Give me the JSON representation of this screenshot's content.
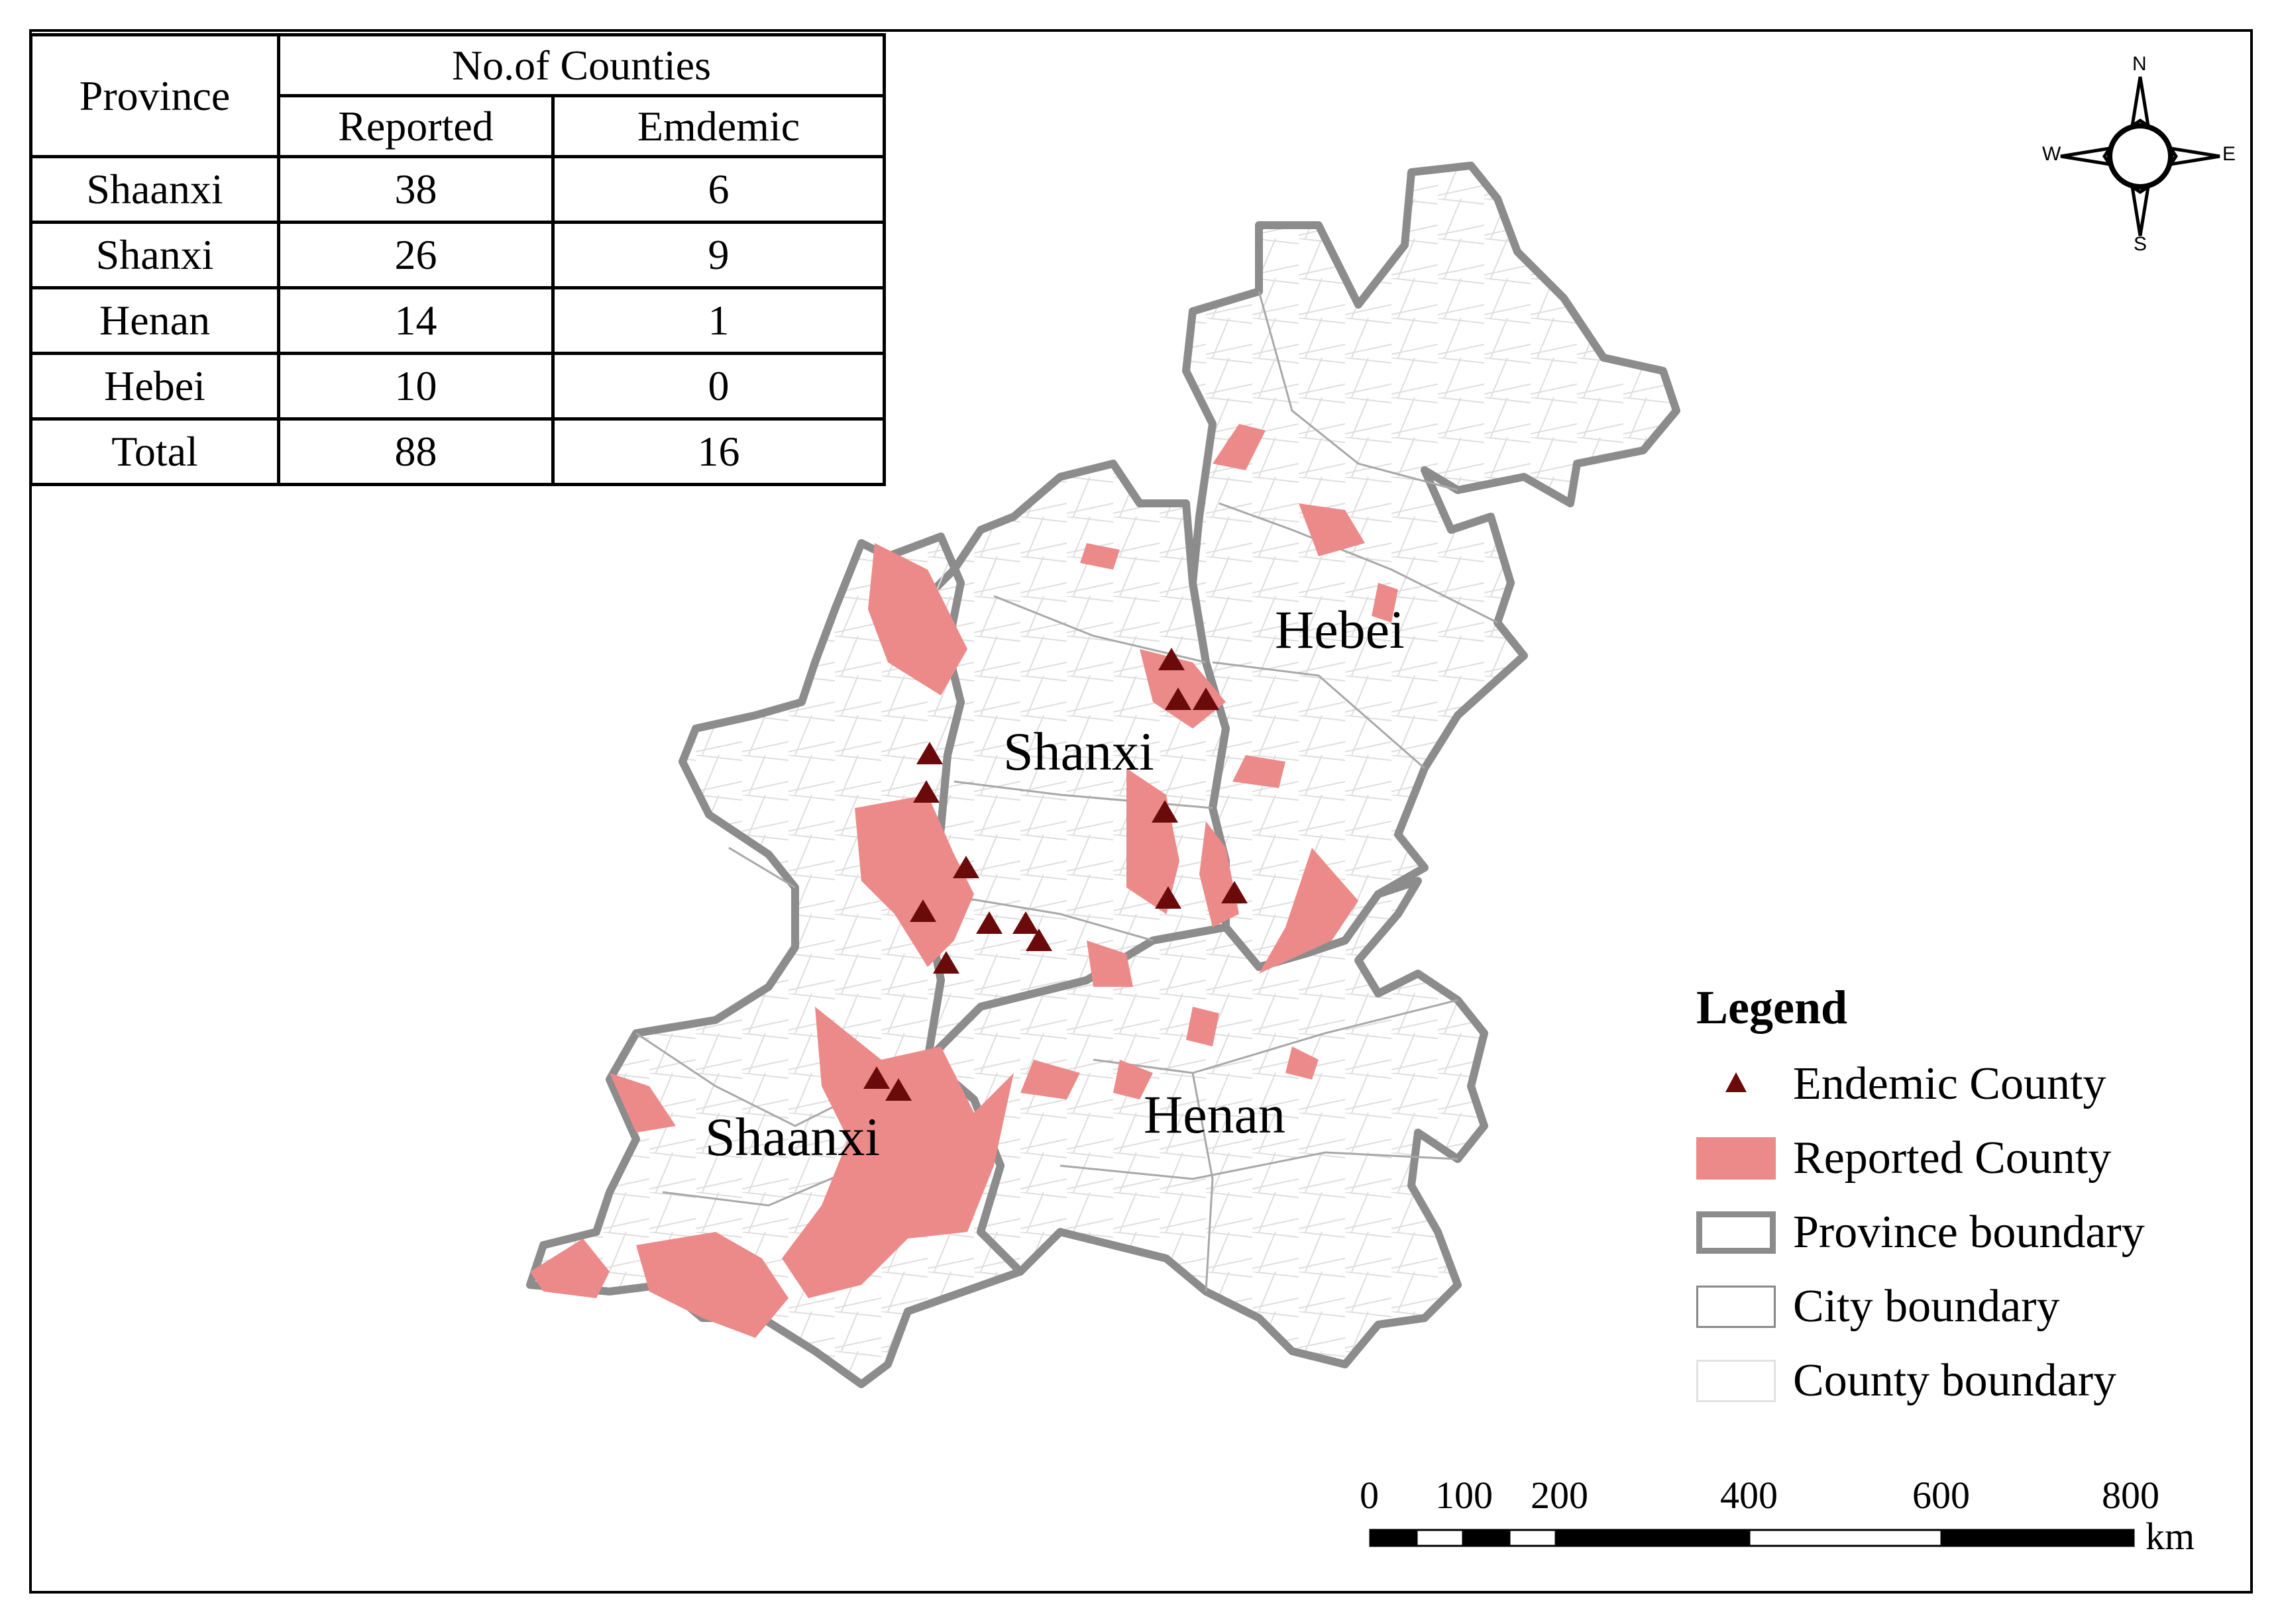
{
  "table": {
    "header_province": "Province",
    "header_counties": "No.of Counties",
    "header_reported": "Reported",
    "header_endemic": "Emdemic",
    "rows": [
      {
        "province": "Shaanxi",
        "reported": "38",
        "endemic": "6"
      },
      {
        "province": "Shanxi",
        "reported": "26",
        "endemic": "9"
      },
      {
        "province": "Henan",
        "reported": "14",
        "endemic": "1"
      },
      {
        "province": "Hebei",
        "reported": "10",
        "endemic": "0"
      },
      {
        "province": "Total",
        "reported": "88",
        "endemic": "16"
      }
    ]
  },
  "compass": {
    "n": "N",
    "s": "S",
    "e": "E",
    "w": "W"
  },
  "provinces": {
    "hebei": "Hebei",
    "shanxi": "Shanxi",
    "shaanxi": "Shaanxi",
    "henan": "Henan"
  },
  "legend": {
    "title": "Legend",
    "items": [
      {
        "label": "Endemic County",
        "symbol": "triangle"
      },
      {
        "label": "Reported County",
        "symbol": "fill"
      },
      {
        "label": "Province boundary",
        "symbol": "thick-outline"
      },
      {
        "label": "City boundary",
        "symbol": "outline"
      },
      {
        "label": "County boundary",
        "symbol": "light-outline"
      }
    ]
  },
  "scale_bar": {
    "ticks": [
      "0",
      "100",
      "200",
      "400",
      "600",
      "800"
    ],
    "unit": "km"
  },
  "colors": {
    "reported_fill": "#ec8a8a",
    "endemic_marker": "#6b0a0a",
    "province_line": "#8c8c8c",
    "city_line": "#a8a8a8",
    "county_line": "#dcdcdc"
  }
}
